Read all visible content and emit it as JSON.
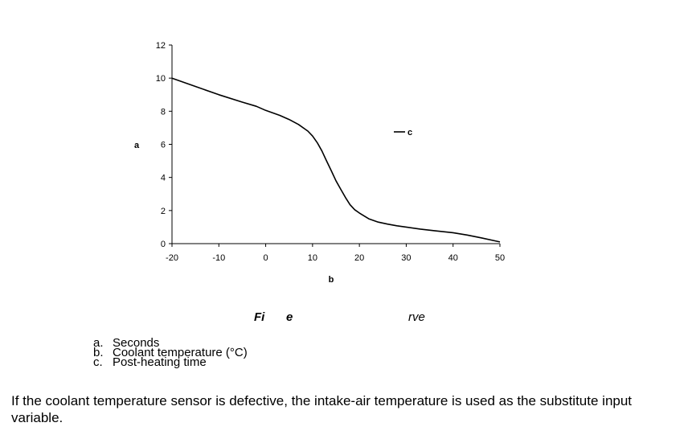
{
  "chart_data": {
    "type": "line",
    "xlabel": "b",
    "ylabel": "a",
    "xlim": [
      -20,
      50
    ],
    "ylim": [
      0,
      12
    ],
    "x_ticks": [
      -20,
      -10,
      0,
      10,
      20,
      30,
      40,
      50
    ],
    "y_ticks": [
      0,
      2,
      4,
      6,
      8,
      10,
      12
    ],
    "grid": false,
    "legend_position": "right",
    "series": [
      {
        "name": "c",
        "color": "#000000",
        "x": [
          -20,
          -15,
          -10,
          -5,
          -2,
          0,
          3,
          5,
          7,
          9,
          10,
          11,
          12,
          13,
          14,
          15,
          16,
          17,
          18,
          19,
          20,
          22,
          24,
          26,
          28,
          30,
          33,
          36,
          40,
          43,
          46,
          50
        ],
        "y": [
          10,
          9.5,
          9.0,
          8.55,
          8.3,
          8.05,
          7.75,
          7.5,
          7.2,
          6.8,
          6.5,
          6.1,
          5.6,
          5.0,
          4.4,
          3.8,
          3.3,
          2.8,
          2.35,
          2.05,
          1.85,
          1.5,
          1.3,
          1.18,
          1.08,
          1.0,
          0.88,
          0.78,
          0.66,
          0.52,
          0.35,
          0.1
        ]
      }
    ]
  },
  "caption": {
    "left": "Fi",
    "mid": "e",
    "right": "rve"
  },
  "legend_items": [
    {
      "key": "a.",
      "text": "Seconds"
    },
    {
      "key": "b.",
      "text": "Coolant temperature (°C)"
    },
    {
      "key": "c.",
      "text": "Post-heating time"
    }
  ],
  "body_text": "If the coolant temperature sensor is defective, the intake-air temperature is used as the substitute input variable."
}
